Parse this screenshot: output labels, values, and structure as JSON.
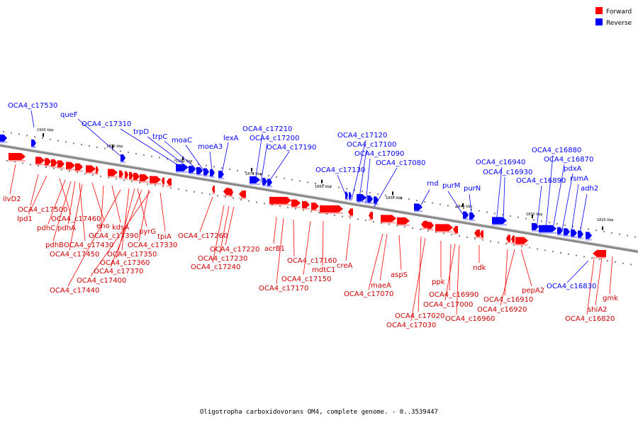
{
  "legend": {
    "forward": {
      "label": "Forward",
      "color": "#ff0000"
    },
    "reverse": {
      "label": "Reverse",
      "color": "#0000ff"
    }
  },
  "caption": "Oligotropha carboxidovorans OM4, complete genome. - 0..3539447",
  "kbp_marks": [
    "1900 kbp",
    "1890 kbp",
    "1880 kbp",
    "1870 kbp",
    "1860 kbp",
    "1850 kbp",
    "1840 kbp",
    "1830 kbp",
    "1820 kbp"
  ],
  "reverse_labels": [
    "OCA4_c17530",
    "queF",
    "OCA4_c17310",
    "trpD",
    "trpC",
    "moaC",
    "moeA3",
    "lexA",
    "OCA4_c17210",
    "OCA4_c17200",
    "OCA4_c17190",
    "OCA4_c17120",
    "OCA4_c17100",
    "OCA4_c17090",
    "OCA4_c17080",
    "OCA4_c17130",
    "rnd",
    "purM",
    "purN",
    "OCA4_c16940",
    "OCA4_c16930",
    "OCA4_c16880",
    "OCA4_c16870",
    "pdxA",
    "OCA4_c16890",
    "rsmA",
    "adh2",
    "OCA4_c16830"
  ],
  "forward_labels": [
    "ilvD2",
    "OCA4_c17500",
    "lpd1",
    "OCA4_c17460",
    "pdhC",
    "pdhA",
    "eno",
    "kdsA",
    "pdhB",
    "OCA4_c17430",
    "OCA4_c17390",
    "pyrG",
    "tpiA",
    "OCA4_c17450",
    "OCA4_c17350",
    "OCA4_c17330",
    "OCA4_c17360",
    "OCA4_c17370",
    "OCA4_c17400",
    "OCA4_c17440",
    "OCA4_c17260",
    "OCA4_c17220",
    "OCA4_c17230",
    "OCA4_c17240",
    "acrB1",
    "OCA4_c17160",
    "OCA4_c17150",
    "mdtC1",
    "OCA4_c17170",
    "creA",
    "aspS",
    "maeA",
    "OCA4_c17070",
    "ppk",
    "OCA4_c16990",
    "OCA4_c17000",
    "OCA4_c17020",
    "OCA4_c17030",
    "ndk",
    "OCA4_c16960",
    "OCA4_c16910",
    "OCA4_c16920",
    "pepA2",
    "shiA2",
    "gmk",
    "OCA4_c16820"
  ]
}
